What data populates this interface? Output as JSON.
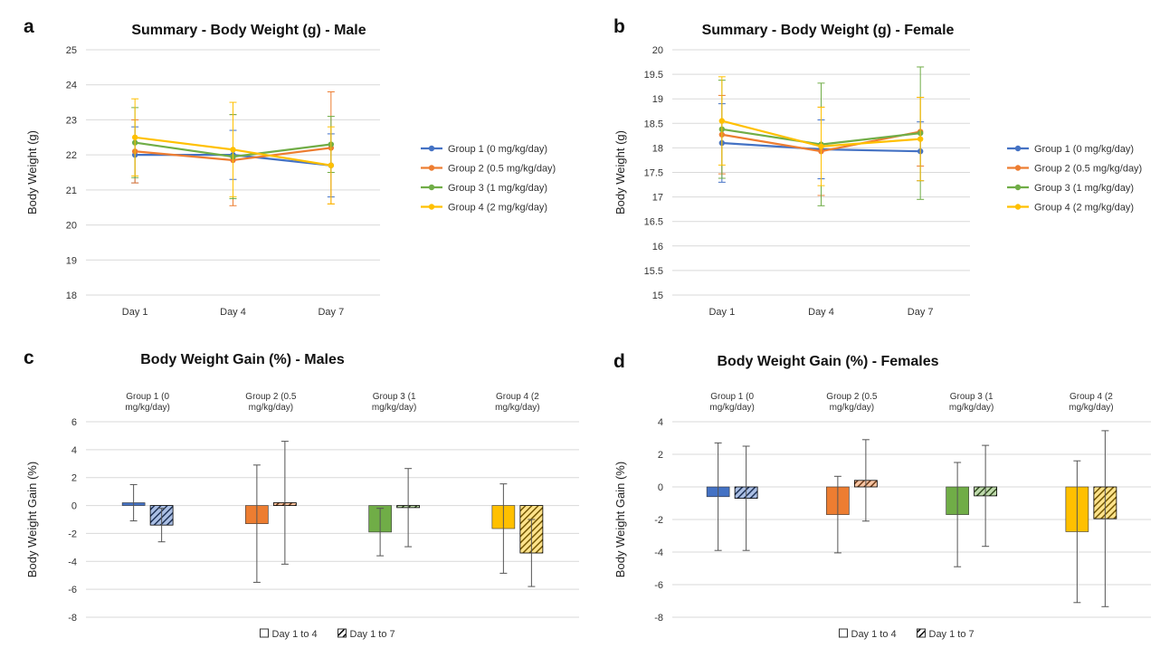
{
  "panels": {
    "a": "a",
    "b": "b",
    "c": "c",
    "d": "d"
  },
  "colors": {
    "g1": "#4472C4",
    "g2": "#ED7D31",
    "g3": "#70AD47",
    "g4": "#FFC000"
  },
  "legend_groups": [
    "Group 1 (0 mg/kg/day)",
    "Group 2 (0.5 mg/kg/day)",
    "Group 3 (1 mg/kg/day)",
    "Group 4 (2 mg/kg/day)"
  ],
  "group_labels": [
    [
      "Group 1 (0",
      "mg/kg/day)"
    ],
    [
      "Group 2 (0.5",
      "mg/kg/day)"
    ],
    [
      "Group 3 (1",
      "mg/kg/day)"
    ],
    [
      "Group 4 (2",
      "mg/kg/day)"
    ]
  ],
  "bar_legend": {
    "solid": "Day 1 to 4",
    "hatched": "Day 1 to 7"
  },
  "chart_data": [
    {
      "type": "line",
      "title": "Summary - Body Weight (g) - Male",
      "ylabel": "Body Weight (g)",
      "xlabel": "",
      "x": [
        "Day 1",
        "Day 4",
        "Day 7"
      ],
      "ylim": [
        18,
        25
      ],
      "yticks": [
        18,
        19,
        20,
        21,
        22,
        23,
        24,
        25
      ],
      "grid": true,
      "legend": "right",
      "series": [
        {
          "name": "Group 1 (0 mg/kg/day)",
          "values": [
            22.0,
            22.0,
            21.7
          ],
          "err": [
            0.8,
            0.7,
            0.9
          ]
        },
        {
          "name": "Group 2 (0.5 mg/kg/day)",
          "values": [
            22.1,
            21.85,
            22.2
          ],
          "err": [
            0.9,
            1.3,
            1.6
          ]
        },
        {
          "name": "Group 3 (1 mg/kg/day)",
          "values": [
            22.35,
            21.95,
            22.3
          ],
          "err": [
            1.0,
            1.2,
            0.8
          ]
        },
        {
          "name": "Group 4 (2 mg/kg/day)",
          "values": [
            22.5,
            22.15,
            21.7
          ],
          "err": [
            1.1,
            1.35,
            1.1
          ]
        }
      ]
    },
    {
      "type": "line",
      "title": "Summary - Body Weight (g) - Female",
      "ylabel": "Body Weight (g)",
      "xlabel": "",
      "x": [
        "Day 1",
        "Day 4",
        "Day 7"
      ],
      "ylim": [
        15,
        20
      ],
      "yticks": [
        15,
        15.5,
        16,
        16.5,
        17,
        17.5,
        18,
        18.5,
        19,
        19.5,
        20
      ],
      "ytick_labels": [
        "15",
        "15.5",
        "16",
        "16.5",
        "17",
        "17.5",
        "18",
        "18.5",
        "19",
        "19.5",
        "20"
      ],
      "grid": true,
      "legend": "right",
      "series": [
        {
          "name": "Group 1 (0 mg/kg/day)",
          "values": [
            18.1,
            17.97,
            17.93
          ],
          "err": [
            0.8,
            0.6,
            0.6
          ]
        },
        {
          "name": "Group 2 (0.5 mg/kg/day)",
          "values": [
            18.27,
            17.93,
            18.33
          ],
          "err": [
            0.8,
            0.9,
            0.7
          ]
        },
        {
          "name": "Group 3 (1 mg/kg/day)",
          "values": [
            18.38,
            18.07,
            18.3
          ],
          "err": [
            1.0,
            1.25,
            1.35
          ]
        },
        {
          "name": "Group 4 (2 mg/kg/day)",
          "values": [
            18.55,
            18.03,
            18.18
          ],
          "err": [
            0.9,
            0.8,
            0.85
          ]
        }
      ]
    },
    {
      "type": "bar",
      "title": "Body Weight Gain (%) - Males",
      "ylabel": "Body Weight Gain (%)",
      "xlabel": "",
      "categories": [
        "Group 1 (0 mg/kg/day)",
        "Group 2 (0.5 mg/kg/day)",
        "Group 3 (1 mg/kg/day)",
        "Group 4 (2 mg/kg/day)"
      ],
      "ylim": [
        -8,
        6
      ],
      "yticks": [
        -8,
        -6,
        -4,
        -2,
        0,
        2,
        4,
        6
      ],
      "grid": true,
      "legend": "bottom",
      "series": [
        {
          "name": "Day 1 to 4",
          "values": [
            0.2,
            -1.3,
            -1.9,
            -1.65
          ],
          "err": [
            1.3,
            4.2,
            1.7,
            3.2
          ]
        },
        {
          "name": "Day 1 to 7",
          "values": [
            -1.4,
            0.2,
            -0.15,
            -3.4
          ],
          "err": [
            1.2,
            4.4,
            2.8,
            2.4
          ]
        }
      ]
    },
    {
      "type": "bar",
      "title": "Body Weight Gain (%) - Females",
      "ylabel": "Body Weight Gain (%)",
      "xlabel": "",
      "categories": [
        "Group 1 (0 mg/kg/day)",
        "Group 2 (0.5 mg/kg/day)",
        "Group 3 (1 mg/kg/day)",
        "Group 4 (2 mg/kg/day)"
      ],
      "ylim": [
        -8,
        4
      ],
      "yticks": [
        -8,
        -6,
        -4,
        -2,
        0,
        2,
        4
      ],
      "grid": true,
      "legend": "bottom",
      "series": [
        {
          "name": "Day 1 to 4",
          "values": [
            -0.6,
            -1.7,
            -1.7,
            -2.75
          ],
          "err": [
            3.3,
            2.35,
            3.2,
            4.35
          ]
        },
        {
          "name": "Day 1 to 7",
          "values": [
            -0.7,
            0.4,
            -0.55,
            -1.95
          ],
          "err": [
            3.2,
            2.5,
            3.1,
            5.4
          ]
        }
      ]
    }
  ]
}
